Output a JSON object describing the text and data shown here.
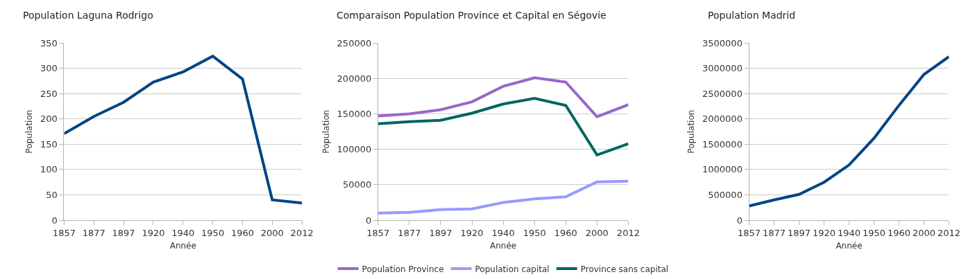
{
  "chart_data": [
    {
      "type": "line",
      "title": "Population Laguna Rodrigo",
      "xlabel": "Année",
      "ylabel": "Population",
      "categories": [
        "1857",
        "1877",
        "1897",
        "1920",
        "1940",
        "1950",
        "1960",
        "2000",
        "2012"
      ],
      "series": [
        {
          "color": "#004586",
          "values": [
            171,
            205,
            233,
            273,
            293,
            324,
            279,
            40,
            34
          ]
        }
      ],
      "ylim": [
        0,
        350
      ],
      "yticks": [
        0,
        50,
        100,
        150,
        200,
        250,
        300,
        350
      ],
      "grid": "y",
      "legend": false
    },
    {
      "type": "line",
      "title": "Comparaison Population Province et Capital en Ségovie",
      "xlabel": "Année",
      "ylabel": "Population",
      "categories": [
        "1857",
        "1877",
        "1897",
        "1920",
        "1940",
        "1950",
        "1960",
        "2000",
        "2012"
      ],
      "series": [
        {
          "name": "Population Province",
          "color": "#9966cc",
          "values": [
            147000,
            150000,
            156000,
            167000,
            189000,
            201000,
            195000,
            146000,
            163000
          ]
        },
        {
          "name": "Population capital",
          "color": "#9999ff",
          "values": [
            10000,
            11000,
            15000,
            16000,
            25000,
            30000,
            33000,
            54000,
            55000
          ]
        },
        {
          "name": "Province sans capital",
          "color": "#00665e",
          "values": [
            136000,
            139000,
            141000,
            151000,
            164000,
            172000,
            162000,
            92000,
            108000
          ]
        }
      ],
      "ylim": [
        0,
        250000
      ],
      "yticks": [
        0,
        50000,
        100000,
        150000,
        200000,
        250000
      ],
      "grid": "y",
      "legend": "bottom"
    },
    {
      "type": "line",
      "title": "Population Madrid",
      "xlabel": "Année",
      "ylabel": "Population",
      "categories": [
        "1857",
        "1877",
        "1897",
        "1920",
        "1940",
        "1950",
        "1960",
        "2000",
        "2012"
      ],
      "series": [
        {
          "color": "#004586",
          "values": [
            280000,
            400000,
            510000,
            750000,
            1090000,
            1620000,
            2270000,
            2880000,
            3230000
          ]
        }
      ],
      "ylim": [
        0,
        3500000
      ],
      "yticks": [
        0,
        500000,
        1000000,
        1500000,
        2000000,
        2500000,
        3000000,
        3500000
      ],
      "grid": "y",
      "legend": false
    }
  ]
}
